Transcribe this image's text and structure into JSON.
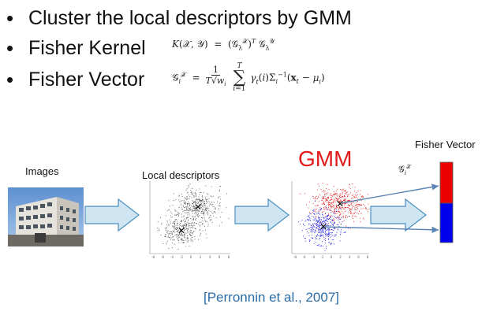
{
  "bullets": [
    {
      "text": "Cluster the local descriptors by GMM"
    },
    {
      "text": "Fisher Kernel"
    },
    {
      "text": "Fisher Vector"
    }
  ],
  "diagram": {
    "images_label": "Images",
    "descriptors_label": "Local descriptors",
    "gmm_label": "GMM",
    "fisher_vector_label": "Fisher Vector",
    "axis_ticks": [
      "-8",
      "-6",
      "-4",
      "-2",
      "0",
      "2",
      "4",
      "6",
      "8"
    ]
  },
  "colors": {
    "gmm": "#e11a1a",
    "citation": "#2a6ea8",
    "cluster_red": "#e01010",
    "cluster_blue": "#1414e0",
    "bar_red": "#ee0000",
    "bar_blue": "#0000ee",
    "arrow_fill": "#cfe6f2",
    "arrow_stroke": "#4a8fc0"
  },
  "citation": "[Perronnin et al., 2007]"
}
